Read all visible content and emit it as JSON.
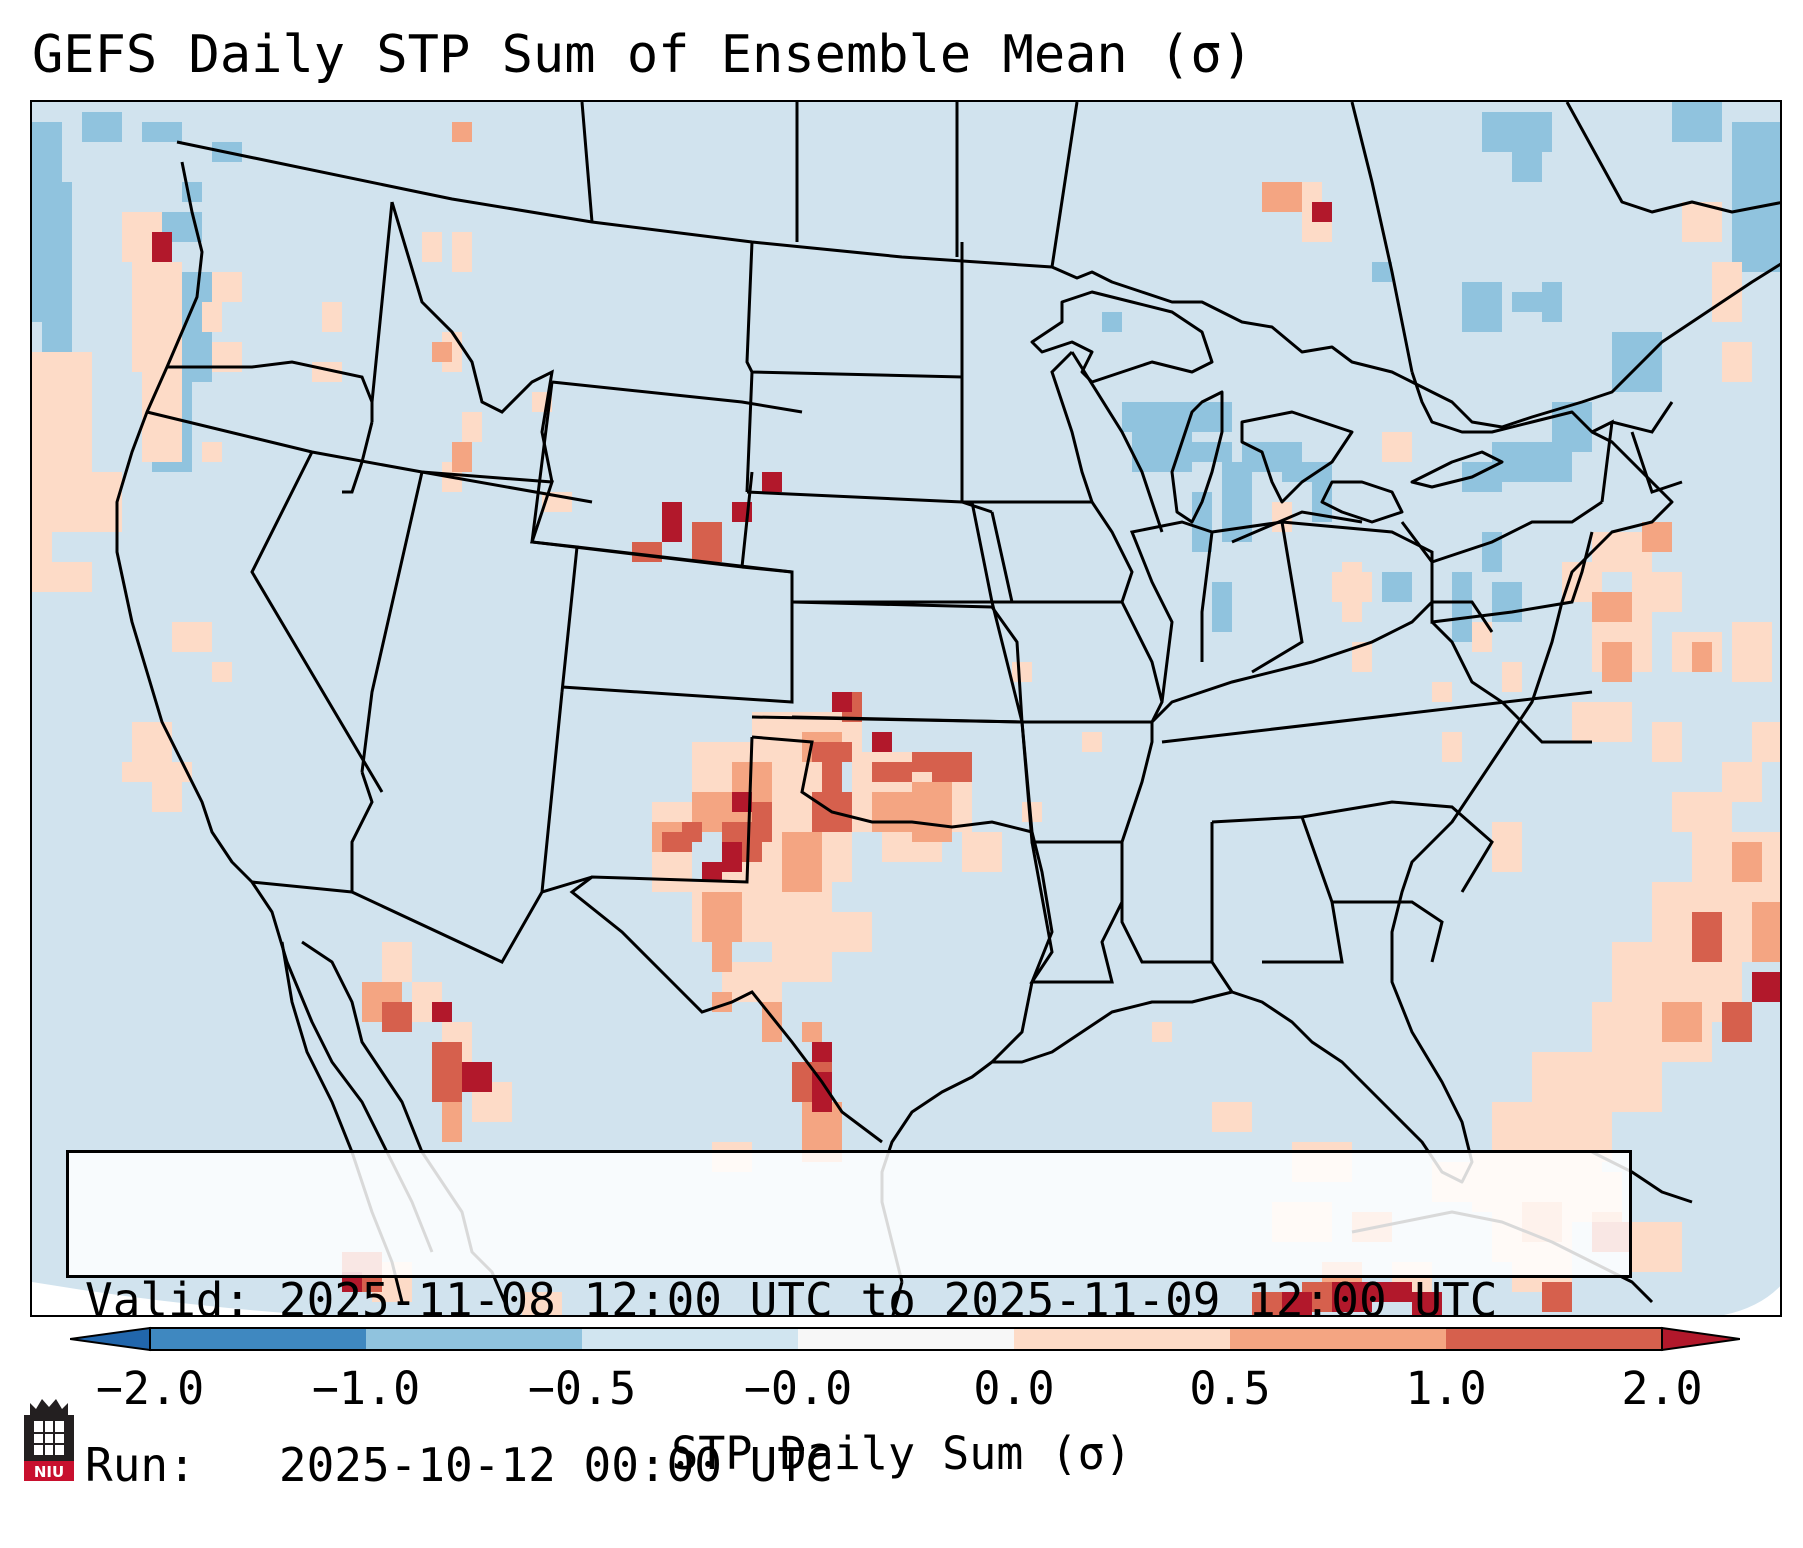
{
  "title": "GEFS Daily STP Sum of Ensemble Mean (σ)",
  "info": {
    "valid_label": "Valid:",
    "valid_value": "2025-11-08 12:00 UTC to 2025-11-09 12:00 UTC",
    "run_label": "Run:",
    "run_value": "2025-10-12 00:00 UTC"
  },
  "colorbar": {
    "label": "STP Daily Sum (σ)",
    "ticks": [
      "−2.0",
      "−1.0",
      "−0.5",
      "−0.0",
      "0.0",
      "0.5",
      "1.0",
      "2.0"
    ],
    "colors": [
      "#3f88c0",
      "#90c3de",
      "#d1e5f0",
      "#f7f7f7",
      "#fddbc7",
      "#f4a582",
      "#d6604d",
      "#b2182b"
    ],
    "extend_low_color": "#2166ac",
    "extend_high_color": "#b2182b"
  },
  "map": {
    "background_color": "#d1e3ee",
    "outline_color": "#000000",
    "region": "Continental United States"
  },
  "logo": {
    "text": "NIU"
  }
}
